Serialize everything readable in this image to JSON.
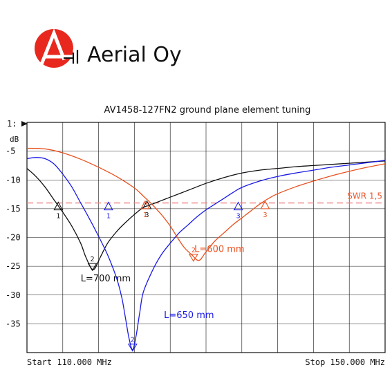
{
  "brand": {
    "name": "Aerial Oy",
    "logo_color": "#e8281e"
  },
  "chart_data": {
    "type": "line",
    "title": "AV1458-127FN2 ground plane element tuning",
    "xlabel": "",
    "ylabel": "",
    "channel_label": "1:",
    "unit_label": "dB",
    "start_label": "Start 110.000 MHz",
    "stop_label": "Stop 150.000 MHz",
    "xlim": [
      110,
      150
    ],
    "ylim": [
      -40,
      0
    ],
    "grid": true,
    "yticks": [
      {
        "value": -5,
        "label": "-5"
      },
      {
        "value": -10,
        "label": "-10"
      },
      {
        "value": -15,
        "label": "-15"
      },
      {
        "value": -20,
        "label": "-20"
      },
      {
        "value": -25,
        "label": "-25"
      },
      {
        "value": -30,
        "label": "-30"
      },
      {
        "value": -35,
        "label": "-35"
      }
    ],
    "reference_line": {
      "name": "SWR 1,5",
      "value": -14.0,
      "color": "#f08080"
    },
    "series": [
      {
        "name": "L=700 mm",
        "color": "#111111",
        "label_at": [
          116.0,
          -27.6
        ],
        "x": [
          110,
          111,
          112,
          113,
          114,
          115,
          116,
          116.6,
          117.4,
          118.2,
          119,
          120,
          121,
          122,
          123,
          124,
          125,
          126,
          128,
          130,
          132,
          134,
          136,
          138,
          140,
          142,
          144,
          146,
          148,
          150
        ],
        "y": [
          -8.0,
          -9.4,
          -11.2,
          -13.4,
          -15.6,
          -18.0,
          -21.0,
          -23.5,
          -25.6,
          -23.4,
          -21.0,
          -19.0,
          -17.4,
          -16.0,
          -14.8,
          -14.2,
          -13.6,
          -13.0,
          -11.8,
          -10.6,
          -9.6,
          -8.8,
          -8.3,
          -8.0,
          -7.7,
          -7.5,
          -7.3,
          -7.1,
          -6.9,
          -6.7
        ],
        "markers": [
          {
            "label": "1",
            "x": 113.5,
            "y": -14.6,
            "dir": "up"
          },
          {
            "label": "2",
            "x": 117.3,
            "y": -25.6,
            "dir": "down"
          },
          {
            "label": "3",
            "x": 123.4,
            "y": -14.4,
            "dir": "up"
          }
        ]
      },
      {
        "name": "L=650 mm",
        "color": "#1a1ae6",
        "label_at": [
          125.3,
          -34.0
        ],
        "x": [
          110,
          111,
          112,
          113,
          114,
          115,
          116,
          117,
          118,
          119,
          120,
          120.6,
          121,
          121.4,
          121.8,
          122.2,
          122.6,
          123,
          124,
          125,
          126,
          127,
          128,
          129,
          130,
          131,
          132,
          133,
          134,
          136,
          138,
          140,
          142,
          144,
          146,
          148,
          150
        ],
        "y": [
          -6.3,
          -6.1,
          -6.3,
          -7.2,
          -9.0,
          -11.2,
          -14.0,
          -16.8,
          -19.8,
          -23.0,
          -27.0,
          -30.5,
          -34.0,
          -37.5,
          -39.5,
          -37.0,
          -33.0,
          -29.5,
          -25.8,
          -23.0,
          -21.0,
          -19.2,
          -17.8,
          -16.4,
          -15.2,
          -14.2,
          -13.2,
          -12.2,
          -11.3,
          -10.2,
          -9.4,
          -8.8,
          -8.3,
          -7.8,
          -7.4,
          -7.0,
          -6.6
        ],
        "markers": [
          {
            "label": "1",
            "x": 119.1,
            "y": -14.6,
            "dir": "up"
          },
          {
            "label": "2",
            "x": 121.8,
            "y": -39.6,
            "dir": "down"
          },
          {
            "label": "3",
            "x": 133.6,
            "y": -14.6,
            "dir": "up"
          }
        ]
      },
      {
        "name": "L=600 mm",
        "color": "#e8501e",
        "label_at": [
          128.7,
          -22.5
        ],
        "x": [
          110,
          112,
          114,
          116,
          118,
          120,
          122,
          123,
          124,
          125,
          126,
          126.8,
          127.6,
          128.4,
          129.2,
          130,
          131,
          132,
          133,
          134,
          135,
          136,
          137,
          138,
          140,
          142,
          144,
          146,
          148,
          150
        ],
        "y": [
          -4.5,
          -4.6,
          -5.3,
          -6.4,
          -7.8,
          -9.4,
          -11.4,
          -12.8,
          -14.3,
          -16.0,
          -18.0,
          -20.0,
          -21.8,
          -23.0,
          -24.0,
          -22.5,
          -20.6,
          -19.2,
          -17.8,
          -16.6,
          -15.4,
          -14.2,
          -13.2,
          -12.4,
          -11.2,
          -10.2,
          -9.3,
          -8.5,
          -7.8,
          -7.2
        ],
        "markers": [
          {
            "label": "1",
            "x": 123.2,
            "y": -14.4,
            "dir": "up"
          },
          {
            "label": "2",
            "x": 128.6,
            "y": -24.0,
            "dir": "down"
          },
          {
            "label": "3",
            "x": 136.6,
            "y": -14.4,
            "dir": "up"
          }
        ]
      }
    ]
  }
}
